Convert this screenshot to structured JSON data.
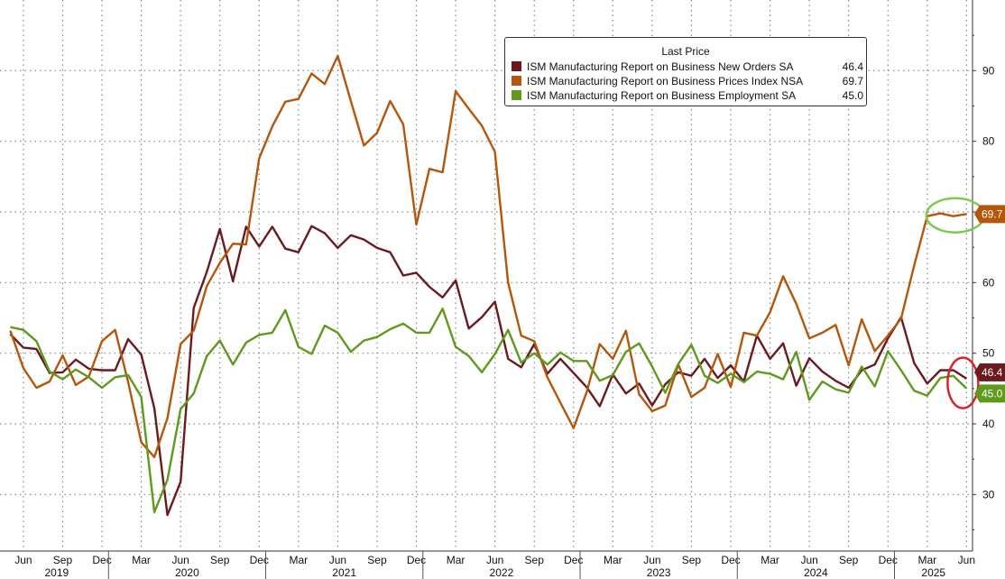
{
  "colors": {
    "new_orders": "#6b1a1f",
    "prices": "#b5560d",
    "employment": "#5e9a1c",
    "grid": "#888888",
    "highlight_green": "#7ec850",
    "highlight_red": "#d8232a"
  },
  "legend": {
    "title": "Last Price",
    "items": [
      {
        "name": "ISM Manufacturing Report on Business New Orders SA",
        "value": "46.4",
        "color": "#6b1a1f"
      },
      {
        "name": "ISM Manufacturing Report on Business Prices Index NSA",
        "value": "69.7",
        "color": "#b5560d"
      },
      {
        "name": "ISM Manufacturing Report on Business Employment SA",
        "value": "45.0",
        "color": "#5e9a1c"
      }
    ]
  },
  "value_tags": {
    "prices": "69.7",
    "new_orders": "46.4",
    "employment": "45.0"
  },
  "chart_data": {
    "type": "line",
    "x_start": "2019-05",
    "x_end": "2025-06",
    "ylim": [
      22,
      100
    ],
    "y_ticks": [
      30,
      40,
      50,
      60,
      70,
      80,
      90
    ],
    "y_tick_labels": [
      "30",
      "40",
      "50",
      "60",
      "",
      "80",
      "90"
    ],
    "y_axis_side": "right",
    "grid": true,
    "month_ticks": [
      {
        "label": "Jun",
        "date": "2019-06"
      },
      {
        "label": "Sep",
        "date": "2019-09"
      },
      {
        "label": "Dec",
        "date": "2019-12"
      },
      {
        "label": "Mar",
        "date": "2020-03"
      },
      {
        "label": "Jun",
        "date": "2020-06"
      },
      {
        "label": "Sep",
        "date": "2020-09"
      },
      {
        "label": "Dec",
        "date": "2020-12"
      },
      {
        "label": "Mar",
        "date": "2021-03"
      },
      {
        "label": "Jun",
        "date": "2021-06"
      },
      {
        "label": "Sep",
        "date": "2021-09"
      },
      {
        "label": "Dec",
        "date": "2021-12"
      },
      {
        "label": "Mar",
        "date": "2022-03"
      },
      {
        "label": "Jun",
        "date": "2022-06"
      },
      {
        "label": "Sep",
        "date": "2022-09"
      },
      {
        "label": "Dec",
        "date": "2022-12"
      },
      {
        "label": "Mar",
        "date": "2023-03"
      },
      {
        "label": "Jun",
        "date": "2023-06"
      },
      {
        "label": "Sep",
        "date": "2023-09"
      },
      {
        "label": "Dec",
        "date": "2023-12"
      },
      {
        "label": "Mar",
        "date": "2024-03"
      },
      {
        "label": "Jun",
        "date": "2024-06"
      },
      {
        "label": "Sep",
        "date": "2024-09"
      },
      {
        "label": "Dec",
        "date": "2024-12"
      },
      {
        "label": "Mar",
        "date": "2025-03"
      },
      {
        "label": "Jun",
        "date": "2025-06"
      }
    ],
    "years": [
      "2019",
      "2020",
      "2021",
      "2022",
      "2023",
      "2024",
      "2025"
    ],
    "series": [
      {
        "name": "ISM Manufacturing Report on Business New Orders SA",
        "key": "new_orders",
        "values": [
          52.7,
          50.8,
          50.6,
          47.2,
          47.3,
          49.1,
          47.8,
          47.6,
          47.6,
          52.0,
          49.8,
          42.2,
          27.1,
          31.8,
          56.4,
          61.5,
          67.6,
          60.2,
          67.9,
          65.1,
          67.9,
          64.8,
          64.3,
          68.0,
          67.0,
          64.9,
          66.7,
          66.1,
          64.9,
          64.3,
          61.0,
          61.4,
          59.4,
          57.9,
          60.3,
          53.5,
          55.1,
          57.3,
          49.2,
          48.0,
          51.3,
          47.1,
          49.2,
          47.2,
          45.2,
          42.5,
          47.0,
          44.3,
          45.7,
          42.6,
          45.6,
          47.3,
          46.8,
          49.2,
          46.5,
          48.3,
          46.0,
          52.5,
          49.2,
          51.4,
          45.4,
          49.3,
          47.4,
          46.1,
          45.1,
          47.6,
          48.4,
          52.1,
          55.1,
          48.6,
          45.7,
          47.6,
          47.6,
          46.4
        ]
      },
      {
        "name": "ISM Manufacturing Report on Business Prices Index NSA",
        "key": "prices",
        "values": [
          53.2,
          47.9,
          45.1,
          46.0,
          49.7,
          45.5,
          46.7,
          51.7,
          53.3,
          45.9,
          37.4,
          35.3,
          40.8,
          51.3,
          53.2,
          59.5,
          62.8,
          65.5,
          65.4,
          77.6,
          82.1,
          85.6,
          86.0,
          89.6,
          88.1,
          92.1,
          85.7,
          79.4,
          81.2,
          85.7,
          82.4,
          68.2,
          76.1,
          75.6,
          87.1,
          84.6,
          82.2,
          78.5,
          60.0,
          52.5,
          51.7,
          46.6,
          43.0,
          39.4,
          44.5,
          51.3,
          49.2,
          53.2,
          44.2,
          41.8,
          42.6,
          48.4,
          43.8,
          45.1,
          49.9,
          45.2,
          52.9,
          52.5,
          55.8,
          60.9,
          57.0,
          52.1,
          52.9,
          54.0,
          48.3,
          54.8,
          50.3,
          52.5,
          54.9,
          62.4,
          69.4,
          69.8,
          69.4,
          69.7
        ]
      },
      {
        "name": "ISM Manufacturing Report on Business Employment SA",
        "key": "employment",
        "values": [
          53.7,
          53.3,
          51.7,
          47.4,
          46.3,
          47.7,
          46.6,
          45.1,
          46.6,
          46.9,
          43.8,
          27.5,
          32.1,
          42.1,
          44.3,
          49.6,
          51.8,
          48.4,
          51.5,
          52.6,
          52.9,
          56.1,
          50.9,
          49.9,
          53.9,
          52.9,
          50.2,
          51.8,
          52.3,
          53.4,
          54.2,
          52.9,
          52.9,
          56.3,
          50.9,
          49.6,
          47.3,
          49.9,
          53.3,
          48.7,
          50.0,
          48.4,
          50.1,
          48.9,
          48.9,
          46.1,
          46.9,
          50.2,
          51.4,
          48.1,
          44.4,
          48.5,
          51.2,
          46.8,
          45.8,
          47.1,
          45.9,
          47.4,
          47.1,
          46.3,
          50.2,
          43.4,
          46.0,
          44.9,
          44.4,
          48.1,
          45.3,
          50.3,
          47.6,
          44.7,
          44.0,
          46.5,
          46.8,
          45.0
        ]
      }
    ]
  }
}
